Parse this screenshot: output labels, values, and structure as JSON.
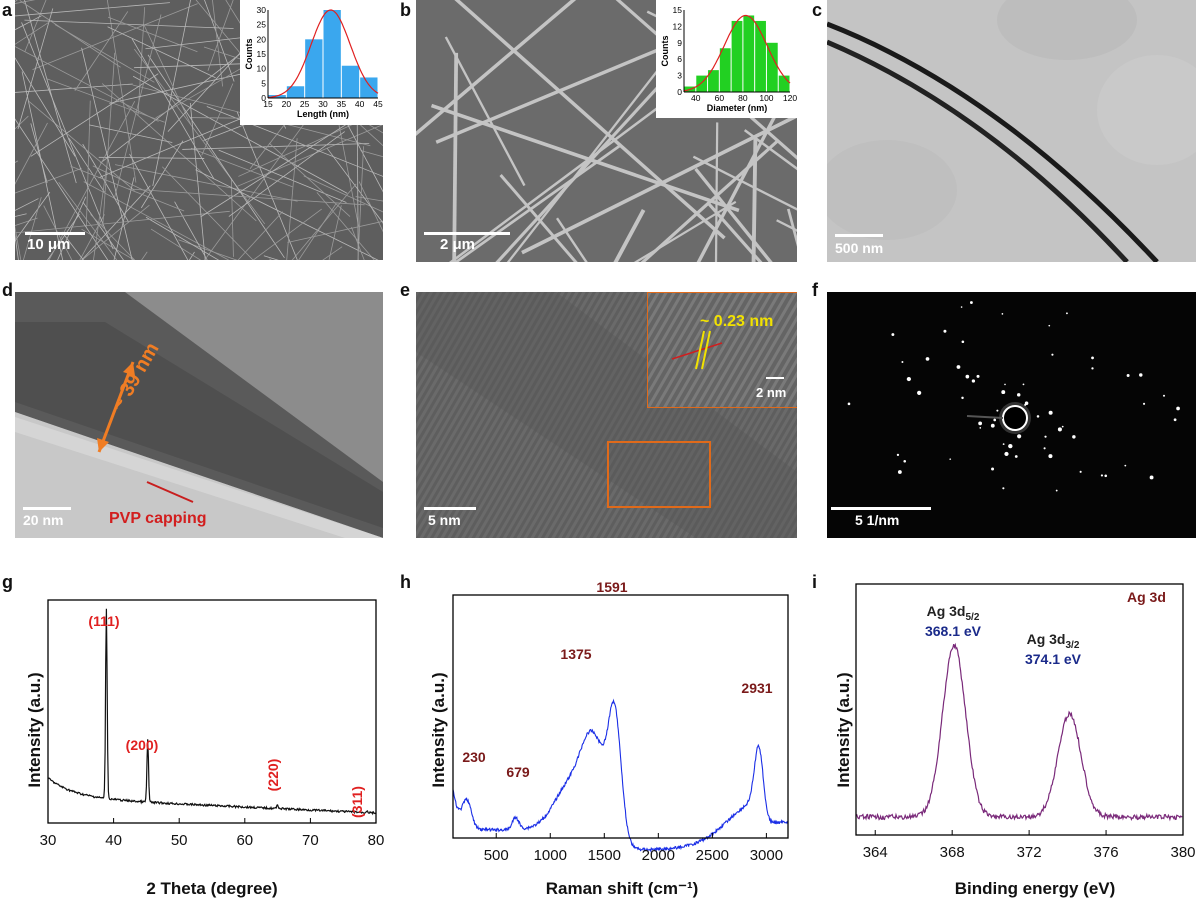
{
  "panels": {
    "a": {
      "label": "a",
      "scale_bar": "10 μm"
    },
    "b": {
      "label": "b",
      "scale_bar": "2 μm"
    },
    "c": {
      "label": "c",
      "scale_bar": "500 nm"
    },
    "d": {
      "label": "d",
      "scale_bar": "20 nm",
      "thickness": "~ 39 nm",
      "capping": "PVP capping"
    },
    "e": {
      "label": "e",
      "scale_bar": "5 nm",
      "inset_spacing": "~ 0.23 nm",
      "inset_scale_bar": "2 nm"
    },
    "f": {
      "label": "f",
      "scale_bar": "5 1/nm"
    },
    "g": {
      "label": "g"
    },
    "h": {
      "label": "h"
    },
    "i": {
      "label": "i"
    }
  },
  "chart_data": [
    {
      "id": "a-inset",
      "type": "bar",
      "xlabel": "Length (nm)",
      "ylabel": "Counts",
      "x": [
        17.5,
        22.5,
        27.5,
        32.5,
        37.5,
        42.5
      ],
      "values": [
        1,
        4,
        20,
        30,
        11,
        7
      ],
      "xlim": [
        15,
        45
      ],
      "ylim": [
        0,
        30
      ],
      "xticks": [
        "15",
        "20",
        "25",
        "30",
        "35",
        "40",
        "45"
      ],
      "yticks": [
        "0",
        "5",
        "10",
        "15",
        "20",
        "25",
        "30"
      ],
      "fit": "gaussian",
      "bar_color": "#3aa7ee"
    },
    {
      "id": "b-inset",
      "type": "bar",
      "xlabel": "Diameter (nm)",
      "ylabel": "Counts",
      "x": [
        35,
        45,
        55,
        65,
        75,
        85,
        95,
        105,
        115
      ],
      "values": [
        1,
        3,
        4,
        8,
        13,
        14,
        13,
        9,
        3
      ],
      "xlim": [
        30,
        120
      ],
      "ylim": [
        0,
        15
      ],
      "xticks": [
        "40",
        "60",
        "80",
        "100",
        "120"
      ],
      "yticks": [
        "0",
        "3",
        "6",
        "9",
        "12",
        "15"
      ],
      "fit": "gaussian",
      "bar_color": "#22d022"
    },
    {
      "id": "g",
      "type": "line",
      "xlabel": "2 Theta (degree)",
      "ylabel": "Intensity (a.u.)",
      "xlim": [
        30,
        80
      ],
      "xticks": [
        "30",
        "40",
        "50",
        "60",
        "70",
        "80"
      ],
      "series": [
        {
          "name": "XRD",
          "color": "#111111"
        }
      ],
      "peaks": [
        {
          "x": 38.9,
          "height": 1.0,
          "label": "(111)"
        },
        {
          "x": 45.2,
          "height": 0.33,
          "label": "(200)"
        },
        {
          "x": 65.0,
          "height": 0.02,
          "label": "(220)"
        },
        {
          "x": 78.6,
          "height": 0.01,
          "label": "(311)"
        }
      ],
      "label_color": "#e02020"
    },
    {
      "id": "h",
      "type": "line",
      "xlabel": "Raman shift (cm⁻¹)",
      "ylabel": "Intensity (a.u.)",
      "xlim": [
        100,
        3200
      ],
      "xticks": [
        "500",
        "1000",
        "1500",
        "2000",
        "2500",
        "3000"
      ],
      "series": [
        {
          "name": "Raman",
          "color": "#1a2ee6"
        }
      ],
      "peaks": [
        {
          "x": 230,
          "label": "230"
        },
        {
          "x": 679,
          "label": "679"
        },
        {
          "x": 1375,
          "label": "1375"
        },
        {
          "x": 1591,
          "label": "1591"
        },
        {
          "x": 2931,
          "label": "2931"
        }
      ],
      "label_color": "#7a1a1a"
    },
    {
      "id": "i",
      "type": "line",
      "xlabel": "Binding energy (eV)",
      "ylabel": "Intensity (a.u.)",
      "xlim": [
        363,
        380
      ],
      "xticks": [
        "364",
        "368",
        "372",
        "376",
        "380"
      ],
      "series": [
        {
          "name": "Ag 3d",
          "color": "#7a2a7a"
        }
      ],
      "legend": "Ag 3d",
      "peaks": [
        {
          "x": 368.1,
          "height": 1.0,
          "label_main": "Ag 3d",
          "label_sub": "5/2",
          "energy": "368.1 eV"
        },
        {
          "x": 374.1,
          "height": 0.6,
          "label_main": "Ag 3d",
          "label_sub": "3/2",
          "energy": "374.1 eV"
        }
      ],
      "energy_color": "#1a2a8a",
      "legend_color": "#7a1a1a"
    }
  ]
}
